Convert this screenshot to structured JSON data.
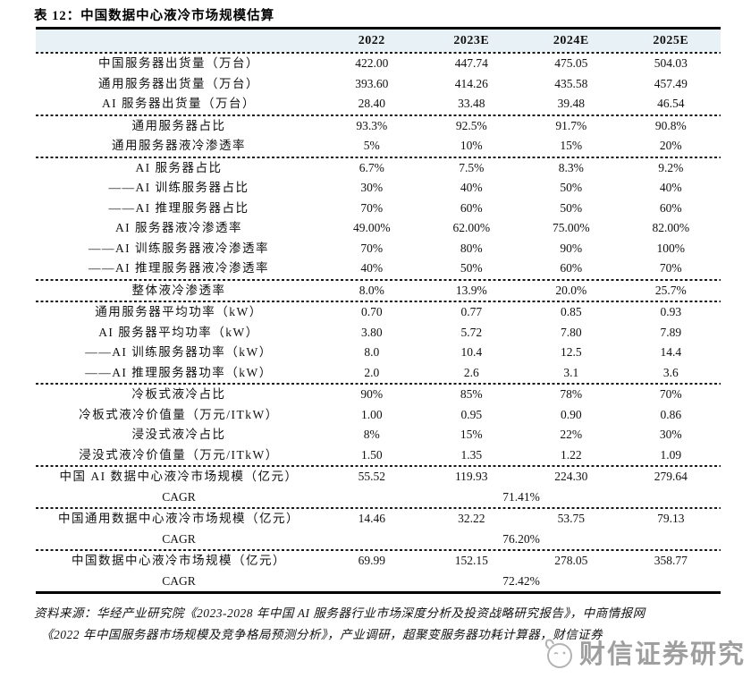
{
  "title": "表 12：中国数据中心液冷市场规模估算",
  "colors": {
    "header_bg": "#e8f1f5",
    "rule": "#000000",
    "watermark": "#8f8f8f"
  },
  "table": {
    "columns": [
      "2022",
      "2023E",
      "2024E",
      "2025E"
    ],
    "sections": [
      {
        "rows": [
          {
            "label": "中国服务器出货量（万台）",
            "values": [
              "422.00",
              "447.74",
              "475.05",
              "504.03"
            ]
          },
          {
            "label": "通用服务器出货量（万台）",
            "values": [
              "393.60",
              "414.26",
              "435.58",
              "457.49"
            ]
          },
          {
            "label": "AI 服务器出货量（万台）",
            "values": [
              "28.40",
              "33.48",
              "39.48",
              "46.54"
            ]
          }
        ]
      },
      {
        "rows": [
          {
            "label": "通用服务器占比",
            "values": [
              "93.3%",
              "92.5%",
              "91.7%",
              "90.8%"
            ]
          },
          {
            "label": "通用服务器液冷渗透率",
            "values": [
              "5%",
              "10%",
              "15%",
              "20%"
            ]
          }
        ]
      },
      {
        "rows": [
          {
            "label": "AI 服务器占比",
            "values": [
              "6.7%",
              "7.5%",
              "8.3%",
              "9.2%"
            ]
          },
          {
            "label": "——AI 训练服务器占比",
            "values": [
              "30%",
              "40%",
              "50%",
              "40%"
            ]
          },
          {
            "label": "——AI 推理服务器占比",
            "values": [
              "70%",
              "60%",
              "50%",
              "60%"
            ]
          },
          {
            "label": "AI 服务器液冷渗透率",
            "values": [
              "49.00%",
              "62.00%",
              "75.00%",
              "82.00%"
            ]
          },
          {
            "label": "——AI 训练服务器液冷渗透率",
            "values": [
              "70%",
              "80%",
              "90%",
              "100%"
            ]
          },
          {
            "label": "——AI 推理服务器液冷渗透率",
            "values": [
              "40%",
              "50%",
              "60%",
              "70%"
            ]
          }
        ]
      },
      {
        "rows": [
          {
            "label": "整体液冷渗透率",
            "values": [
              "8.0%",
              "13.9%",
              "20.0%",
              "25.7%"
            ]
          }
        ]
      },
      {
        "rows": [
          {
            "label": "通用服务器平均功率（kW）",
            "values": [
              "0.70",
              "0.77",
              "0.85",
              "0.93"
            ]
          },
          {
            "label": "AI 服务器平均功率（kW）",
            "values": [
              "3.80",
              "5.72",
              "7.80",
              "7.89"
            ]
          },
          {
            "label": "——AI 训练服务器功率（kW）",
            "values": [
              "8.0",
              "10.4",
              "12.5",
              "14.4"
            ]
          },
          {
            "label": "——AI 推理服务器功率（kW）",
            "values": [
              "2.0",
              "2.6",
              "3.1",
              "3.6"
            ]
          }
        ]
      },
      {
        "rows": [
          {
            "label": "冷板式液冷占比",
            "values": [
              "90%",
              "85%",
              "78%",
              "70%"
            ]
          },
          {
            "label": "冷板式液冷价值量（万元/ITkW）",
            "values": [
              "1.00",
              "0.95",
              "0.90",
              "0.86"
            ]
          },
          {
            "label": "浸没式液冷占比",
            "values": [
              "8%",
              "15%",
              "22%",
              "30%"
            ]
          },
          {
            "label": "浸没式液冷价值量（万元/ITkW）",
            "values": [
              "1.50",
              "1.35",
              "1.22",
              "1.09"
            ]
          }
        ]
      },
      {
        "rows": [
          {
            "label": "中国 AI 数据中心液冷市场规模（亿元）",
            "values": [
              "55.52",
              "119.93",
              "224.30",
              "279.64"
            ]
          },
          {
            "label": "CAGR",
            "span": "71.41%"
          }
        ]
      },
      {
        "rows": [
          {
            "label": "中国通用数据中心液冷市场规模（亿元）",
            "values": [
              "14.46",
              "32.22",
              "53.75",
              "79.13"
            ]
          },
          {
            "label": "CAGR",
            "span": "76.20%"
          }
        ]
      },
      {
        "rows": [
          {
            "label": "中国数据中心液冷市场规模（亿元）",
            "values": [
              "69.99",
              "152.15",
              "278.05",
              "358.77"
            ]
          },
          {
            "label": "CAGR",
            "span": "72.42%"
          }
        ]
      }
    ]
  },
  "footer": {
    "source_line1": "资料来源：华经产业研究院《2023-2028 年中国 AI 服务器行业市场深度分析及投资战略研究报告》，中商情报网",
    "source_line2": "《2022 年中国服务器市场规模及竞争格局预测分析》，产业调研，超聚变服务器功耗计算器，财信证券"
  },
  "watermark": {
    "logo": "mascot-circle-icon",
    "text": "财信证券研究"
  }
}
